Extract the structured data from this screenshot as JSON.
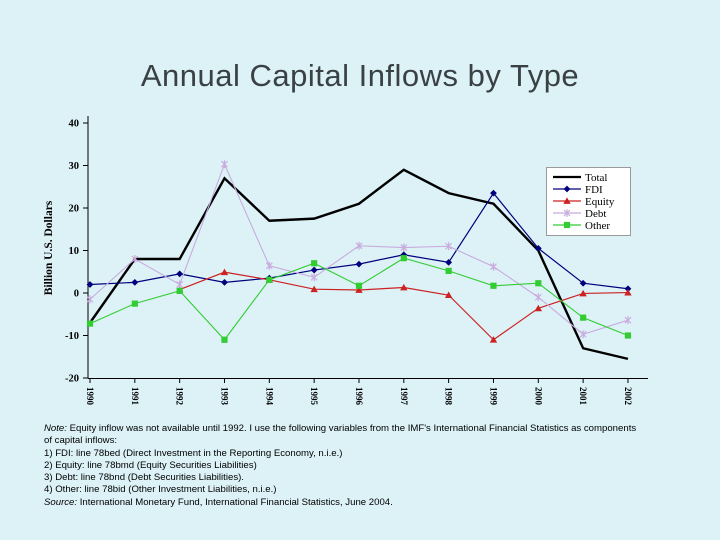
{
  "slide": {
    "title": "Annual Capital Inflows by Type",
    "background_color": "#dcf2f7",
    "title_color": "#3a4145"
  },
  "chart_data": {
    "type": "line",
    "title": "Annual Capital Inflows by Type",
    "xlabel": "",
    "ylabel": "Billion U.S. Dollars",
    "ylim": [
      -20,
      40
    ],
    "y_ticks": [
      40,
      30,
      20,
      10,
      0,
      -10,
      -20
    ],
    "grid": false,
    "legend_position": "inside-right",
    "categories": [
      "1990",
      "1991",
      "1992",
      "1993",
      "1994",
      "1995",
      "1996",
      "1997",
      "1998",
      "1999",
      "2000",
      "2001",
      "2002"
    ],
    "series": [
      {
        "name": "Total",
        "color": "#000000",
        "marker": "none",
        "line_width": 2.4,
        "values": [
          -7,
          8,
          8,
          27,
          17,
          17.5,
          21,
          29,
          23.5,
          21,
          10,
          -13,
          -15.5
        ]
      },
      {
        "name": "FDI",
        "color": "#00007d",
        "marker": "diamond",
        "line_width": 1.2,
        "values": [
          2,
          2.5,
          4.5,
          2.5,
          3.5,
          5.4,
          6.8,
          9,
          7.2,
          23.5,
          10.5,
          2.3,
          1
        ]
      },
      {
        "name": "Equity",
        "color": "#cc2222",
        "marker": "triangle",
        "line_width": 1.2,
        "values": [
          null,
          null,
          0.8,
          4.9,
          3.1,
          0.9,
          0.7,
          1.3,
          -0.5,
          -11,
          -3.6,
          -0.1,
          0.1
        ]
      },
      {
        "name": "Debt",
        "color": "#c9abdf",
        "marker": "x",
        "line_width": 1.1,
        "values": [
          -1.5,
          8,
          2,
          30.3,
          6.4,
          3.7,
          11.1,
          10.7,
          11,
          6.2,
          -1,
          -9.7,
          -6.4
        ]
      },
      {
        "name": "Other",
        "color": "#33cc33",
        "marker": "square",
        "line_width": 1.1,
        "values": [
          -7.2,
          -2.5,
          0.5,
          -11,
          3.1,
          7,
          1.7,
          8.2,
          5.2,
          1.7,
          2.3,
          -5.8,
          -10
        ]
      }
    ]
  },
  "notes": {
    "lines": [
      {
        "italic": "Note:",
        "text": " Equity inflow was not available until 1992. I use the following variables from the IMF's International Financial Statistics as components"
      },
      {
        "text": "of capital inflows:"
      },
      {
        "text": "1) FDI: line 78bed (Direct Investment in the Reporting Economy, n.i.e.)"
      },
      {
        "text": "2) Equity: line 78bmd (Equity Securities Liabilities)"
      },
      {
        "text": "3) Debt: line 78bnd (Debt Securities Liabilities)."
      },
      {
        "text": "4) Other: line 78bid (Other Investment Liabilities, n.i.e.)"
      },
      {
        "italic": "Source:",
        "text": " International Monetary Fund, International Financial Statistics, June 2004."
      }
    ]
  }
}
